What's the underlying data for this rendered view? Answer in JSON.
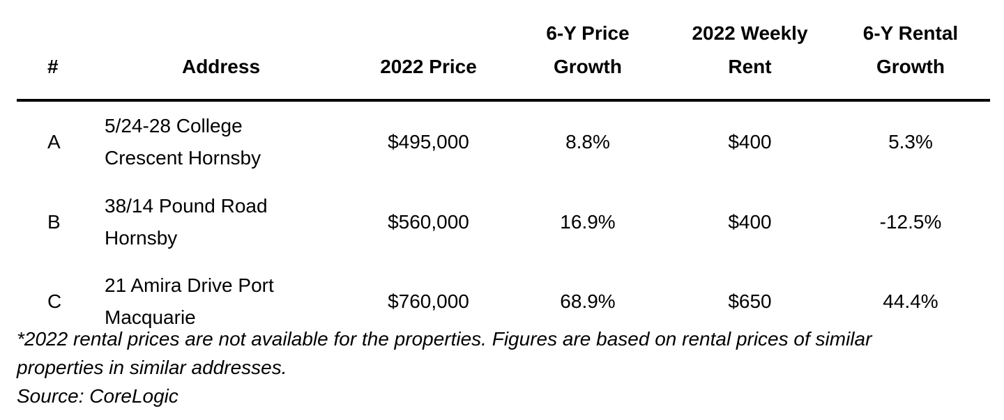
{
  "table": {
    "headers": {
      "num": "#",
      "address": "Address",
      "price_2022": "2022 Price",
      "price_growth_line1": "6-Y Price",
      "price_growth_line2": "Growth",
      "weekly_rent_line1": "2022 Weekly",
      "weekly_rent_line2": "Rent",
      "rental_growth_line1": "6-Y Rental",
      "rental_growth_line2": "Growth"
    },
    "rows": [
      {
        "id": "A",
        "address_line1": "5/24-28 College",
        "address_line2": "Crescent Hornsby",
        "price_2022": "$495,000",
        "price_growth": "8.8%",
        "weekly_rent": "$400",
        "rental_growth": "5.3%"
      },
      {
        "id": "B",
        "address_line1": "38/14 Pound Road",
        "address_line2": "Hornsby",
        "price_2022": "$560,000",
        "price_growth": "16.9%",
        "weekly_rent": "$400",
        "rental_growth": "-12.5%"
      },
      {
        "id": "C",
        "address_line1": "21 Amira Drive Port",
        "address_line2": "Macquarie",
        "price_2022": "$760,000",
        "price_growth": "68.9%",
        "weekly_rent": "$650",
        "rental_growth": "44.4%"
      }
    ]
  },
  "notes": {
    "footnote_line1": "*2022 rental prices are not available for the properties. Figures are based on rental prices of similar",
    "footnote_line2": "properties in similar addresses.",
    "source": "Source: CoreLogic"
  }
}
